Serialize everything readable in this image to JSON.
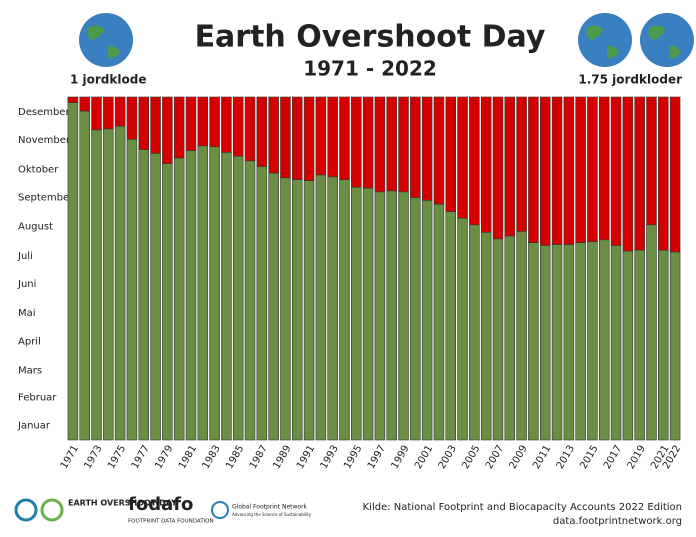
{
  "chart_data": {
    "type": "bar",
    "title": "Earth Overshoot Day",
    "subtitle": "1971 - 2022",
    "left_label": "1 jordklode",
    "right_label": "1.75 jordkloder",
    "source": "Kilde: National Footprint and Biocapacity Accounts 2022 Edition",
    "source_url": "data.footprintnetwork.org",
    "logos": {
      "eod": "EARTH OVERSHOOT DAY",
      "fodafo": "fodafo",
      "fodafo_sub": "FOOTPRINT DATA FOUNDATION",
      "gfn": "Global Footprint Network",
      "gfn_sub": "Advancing the Science of Sustainability"
    },
    "categories": [
      "1971",
      null,
      "1973",
      null,
      "1975",
      null,
      "1977",
      null,
      "1979",
      null,
      "1981",
      null,
      "1983",
      null,
      "1985",
      null,
      "1987",
      null,
      "1989",
      null,
      "1991",
      null,
      "1993",
      null,
      "1995",
      null,
      "1997",
      null,
      "1999",
      null,
      "2001",
      null,
      "2003",
      null,
      "2005",
      null,
      "2007",
      null,
      "2009",
      null,
      "2011",
      null,
      "2013",
      null,
      "2015",
      null,
      "2017",
      null,
      "2019",
      null,
      "2021",
      "2022"
    ],
    "values": [
      359,
      350,
      330,
      331,
      334,
      320,
      309,
      305,
      294,
      300,
      308,
      313,
      312,
      306,
      302,
      297,
      291,
      284,
      279,
      277,
      276,
      282,
      280,
      277,
      269,
      268,
      264,
      265,
      264,
      258,
      255,
      251,
      243,
      236,
      229,
      221,
      214,
      217,
      222,
      210,
      207,
      208,
      208,
      210,
      211,
      213,
      207,
      201,
      202,
      229,
      202,
      200
    ],
    "color": "#6b8e45",
    "remainder_color": "#d40000",
    "ylim": [
      0,
      365
    ],
    "yticks": [
      {
        "value": 15.5,
        "label": "Januar"
      },
      {
        "value": 45,
        "label": "Februar"
      },
      {
        "value": 74,
        "label": "Mars"
      },
      {
        "value": 105,
        "label": "April"
      },
      {
        "value": 135,
        "label": "Mai"
      },
      {
        "value": 166,
        "label": "Juni"
      },
      {
        "value": 196,
        "label": "Juli"
      },
      {
        "value": 227,
        "label": "August"
      },
      {
        "value": 258,
        "label": "September"
      },
      {
        "value": 288,
        "label": "Oktober"
      },
      {
        "value": 319,
        "label": "November"
      },
      {
        "value": 349,
        "label": "Desember"
      }
    ]
  }
}
